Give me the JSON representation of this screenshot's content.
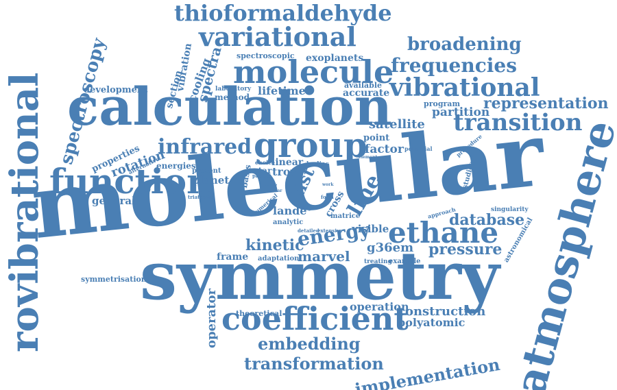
{
  "colors": {
    "accent": "#4a7fb4",
    "background": "#ffffff"
  },
  "words": {
    "molecular": "molecular",
    "calculation": "calculation",
    "symmetry": "symmetry",
    "atmosphere": "atmosphere",
    "rovibrational": "rovibrational",
    "function": "function",
    "group": "group",
    "molecule": "molecule",
    "variational": "variational",
    "thioformaldehyde": "thioformaldehyde",
    "vibrational": "vibrational",
    "coefficient": "coefficient",
    "ethane": "ethane",
    "transition": "transition",
    "infrared": "infrared",
    "energy": "energy",
    "spectroscopy": "spectroscopy",
    "frequencies": "frequencies",
    "broadening": "broadening",
    "representation": "representation",
    "database": "database",
    "pressure": "pressure",
    "embedding": "embedding",
    "transformation": "transformation",
    "implementation": "implementation",
    "construction": "construction",
    "operation": "operation",
    "polyatomic": "polyatomic",
    "kinetic": "kinetic",
    "marvel": "marvel",
    "g36em": "g36em",
    "line": "line",
    "list": "list",
    "landé": "landé",
    "visible": "visible",
    "partition": "partition",
    "program": "program",
    "satellite": "satellite",
    "factor": "factor",
    "point": "point",
    "lifetime": "lifetime",
    "accurate": "accurate",
    "available": "available",
    "exoplanets": "exoplanets",
    "spectroscopic": "spectroscopic",
    "laboratory": "laboratory",
    "method": "method",
    "spectra": "spectra",
    "cooling": "cooling",
    "vibration": "vibration",
    "section": "section",
    "development": "development",
    "properties": "properties",
    "rotation": "rotation",
    "energies": "energies",
    "alternative": "alternative",
    "general": "general",
    "planet": "planet",
    "present": "present",
    "basis": "basis",
    "star": "star",
    "linear": "linear",
    "trove": "trove",
    "bodies": "bodies",
    "choice": "choice",
    "frame": "frame",
    "adaptation": "adaptation",
    "operator": "operator",
    "theoretical": "theoretical",
    "symmetrisation": "symmetrisation",
    "treating": "treating",
    "example": "example",
    "astronomical": "astronomical",
    "studies": "studies",
    "procedure": "procedure",
    "singularity": "singularity",
    "approach": "approach",
    "matrice": "matrice",
    "cross": "cross",
    "analytic": "analytic",
    "detailed": "detailed",
    "extensive": "extensive",
    "numerical": "numerical",
    "range": "range",
    "triatomic": "triatomic",
    "potential": "potential",
    "element": "element",
    "project": "project",
    "form": "form",
    "work": "work",
    "nuclear": "nuclear",
    "dipole": "dipole"
  }
}
